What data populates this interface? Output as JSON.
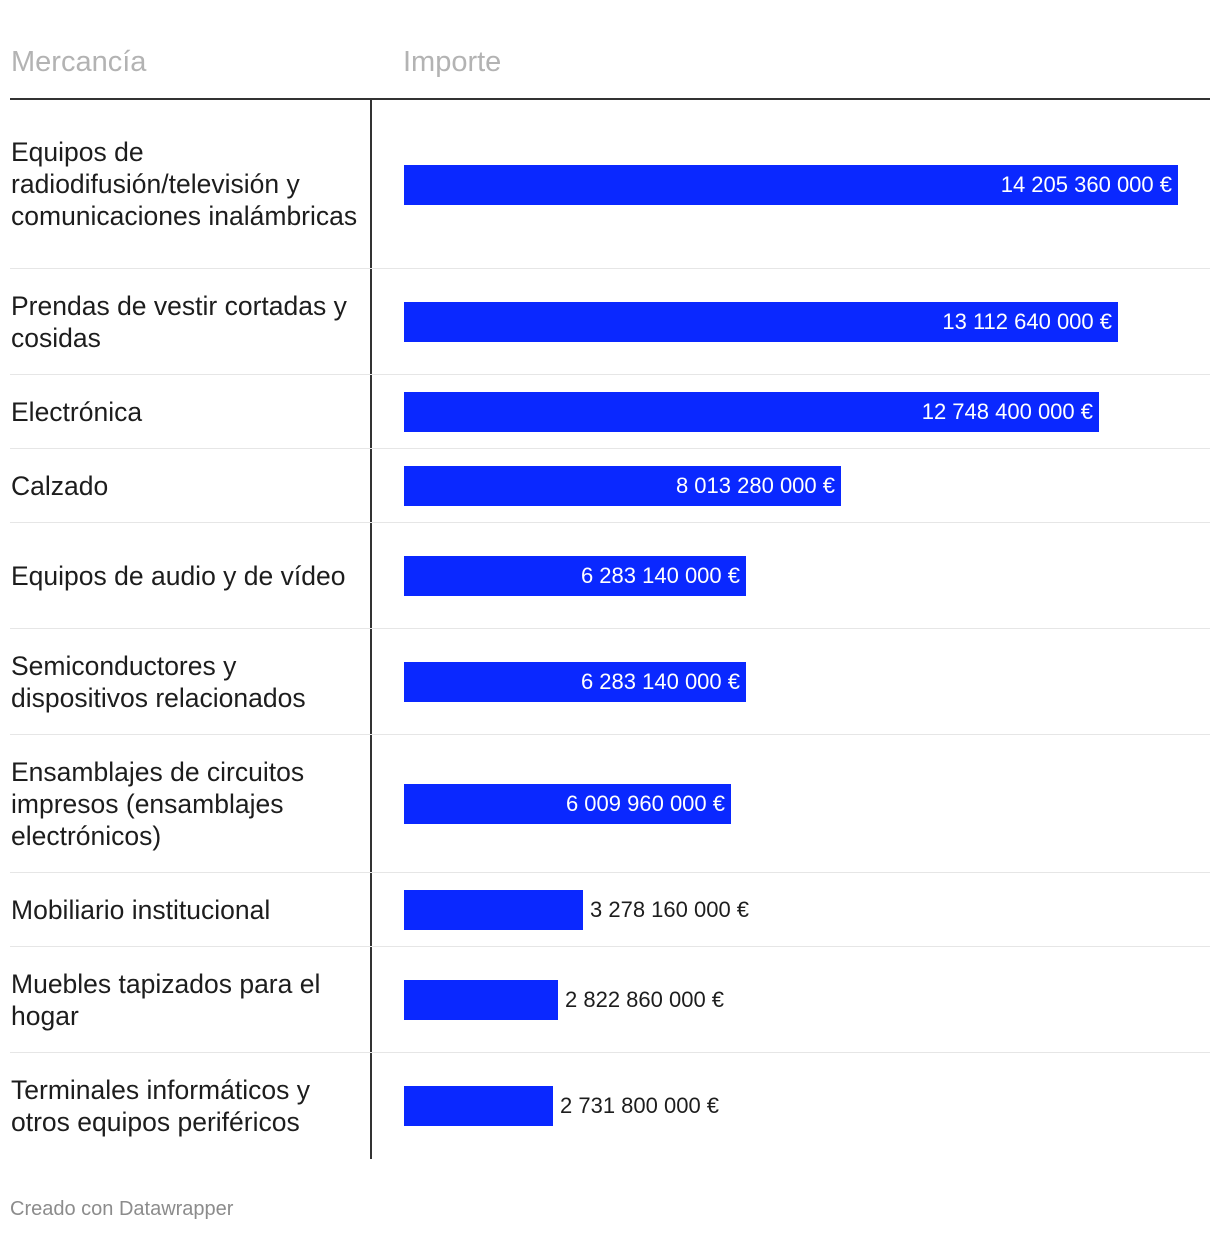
{
  "chart_data": {
    "type": "table",
    "columns": [
      "Mercancía",
      "Importe"
    ],
    "rows": [
      {
        "label": "Equipos de radiodifusión/televisión y comunicaciones inalámbricas",
        "value": 14205360000,
        "display": "14 205 360 000 €"
      },
      {
        "label": "Prendas de vestir cortadas y cosidas",
        "value": 13112640000,
        "display": "13 112 640 000 €"
      },
      {
        "label": "Electrónica",
        "value": 12748400000,
        "display": "12 748 400 000 €"
      },
      {
        "label": "Calzado",
        "value": 8013280000,
        "display": "8 013 280 000 €"
      },
      {
        "label": "Equipos de audio y de vídeo",
        "value": 6283140000,
        "display": "6 283 140 000 €"
      },
      {
        "label": "Semiconductores y dispositivos relacionados",
        "value": 6283140000,
        "display": "6 283 140 000 €"
      },
      {
        "label": "Ensamblajes de circuitos impresos (ensamblajes electrónicos)",
        "value": 6009960000,
        "display": "6 009 960 000 €"
      },
      {
        "label": "Mobiliario institucional",
        "value": 3278160000,
        "display": "3 278 160 000 €"
      },
      {
        "label": "Muebles tapizados para el hogar",
        "value": 2822860000,
        "display": "2 822 860 000 €"
      },
      {
        "label": "Terminales informáticos y otros equipos periféricos",
        "value": 2731800000,
        "display": "2 731 800 000 €"
      }
    ],
    "bar_color": "#0a28ff",
    "value_unit": "€"
  },
  "footer": {
    "credit": "Creado con Datawrapper"
  }
}
